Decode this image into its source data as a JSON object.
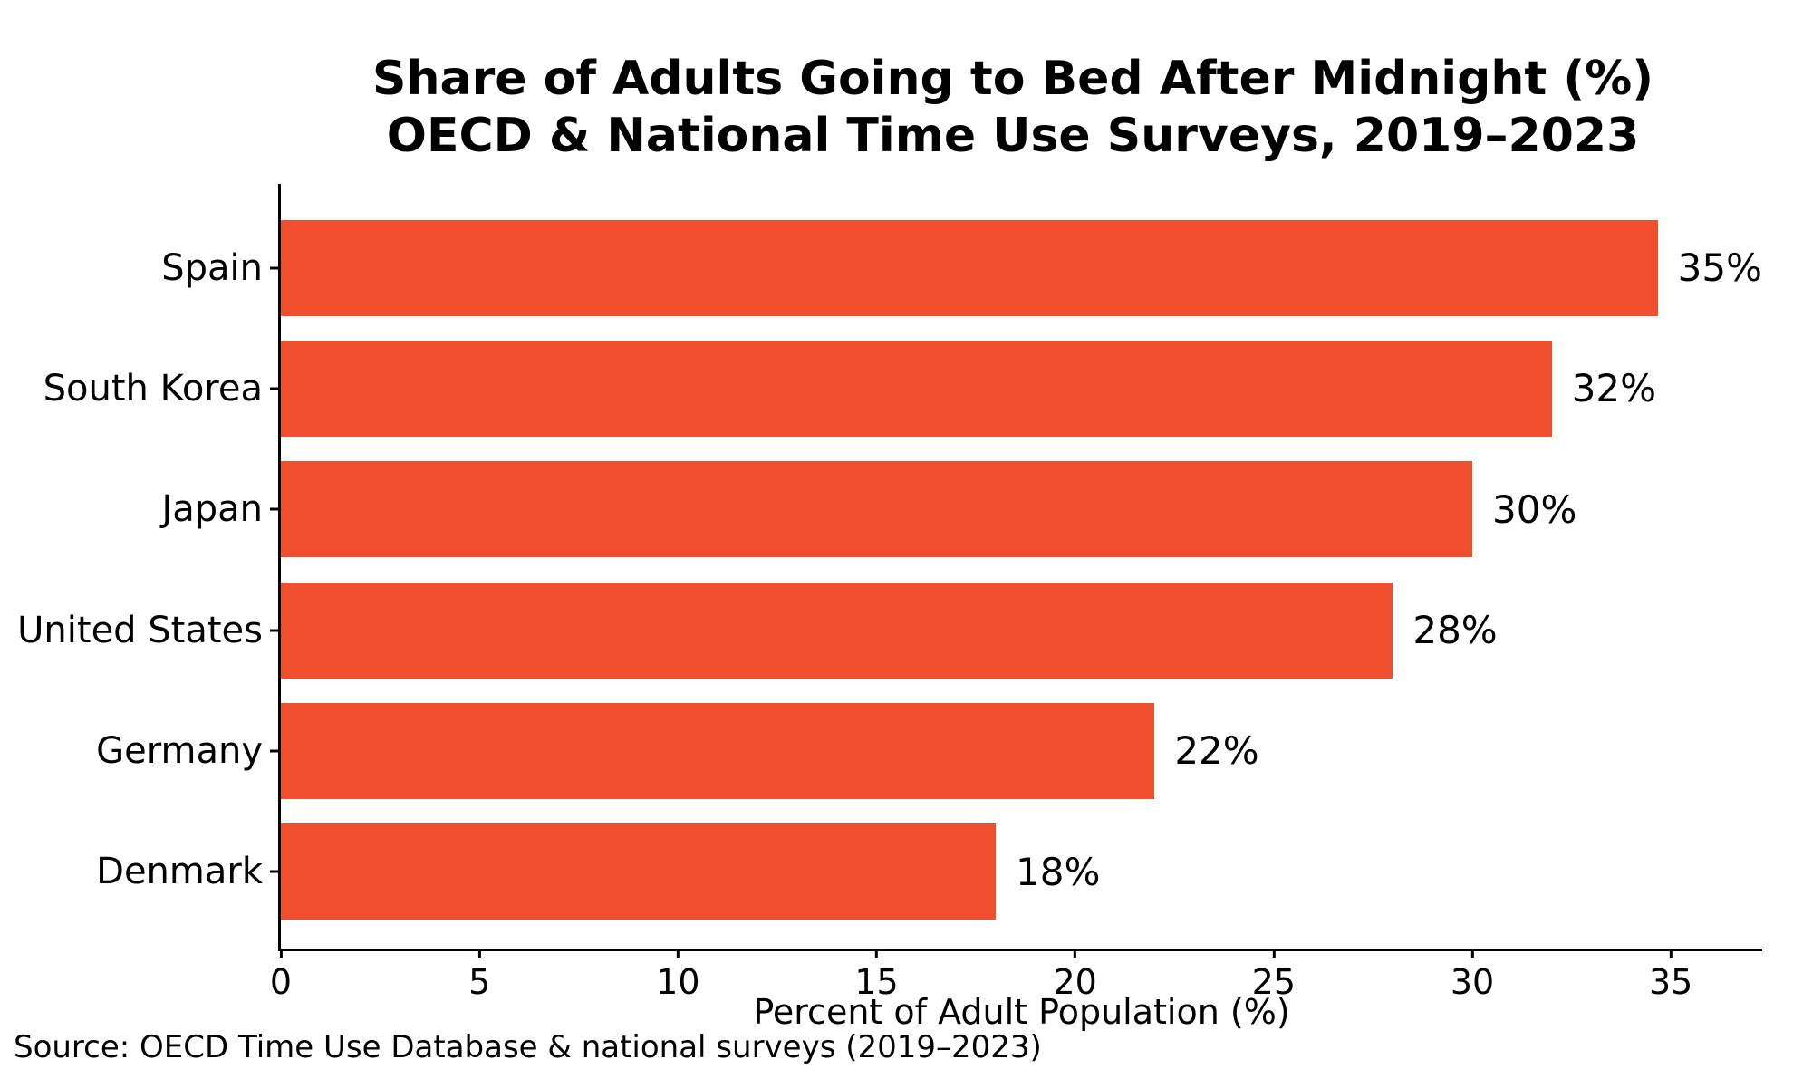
{
  "chart_data": {
    "type": "bar",
    "orientation": "horizontal",
    "title_line1": "Share of Adults Going to Bed After Midnight (%)",
    "title_line2": "OECD & National Time Use Surveys, 2019–2023",
    "categories": [
      "Spain",
      "South Korea",
      "Japan",
      "United States",
      "Germany",
      "Denmark"
    ],
    "values": [
      35,
      32,
      30,
      28,
      22,
      18
    ],
    "value_labels": [
      "35%",
      "32%",
      "30%",
      "28%",
      "22%",
      "18%"
    ],
    "xlabel": "Percent of Adult Population (%)",
    "xticks": [
      0,
      5,
      10,
      15,
      20,
      25,
      30,
      35
    ],
    "xlim": [
      0,
      37.3
    ],
    "bar_color": "#F04E2C",
    "axis_color": "#000000",
    "grid": false,
    "legend": false,
    "source": "Source: OECD Time Use Database & national surveys (2019–2023)"
  }
}
